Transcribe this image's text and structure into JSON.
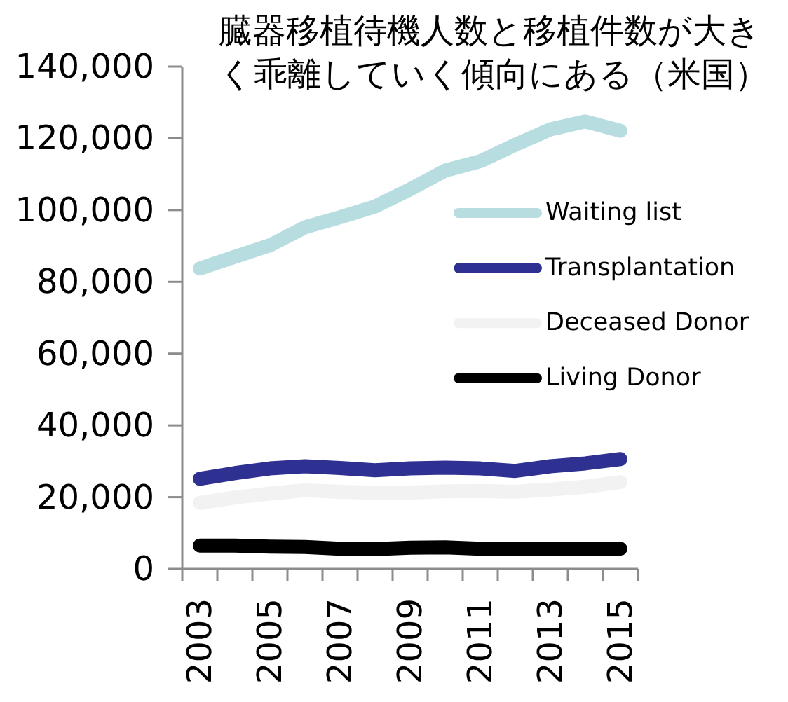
{
  "chart_data": {
    "type": "line",
    "title": "臓器移植待機人数と移植件数が大きく乖離していく傾向にある（米国）",
    "categories": [
      "2003",
      null,
      "2005",
      null,
      "2007",
      null,
      "2009",
      null,
      "2011",
      null,
      "2013",
      null,
      "2015"
    ],
    "ylim": [
      0,
      140000
    ],
    "yticks": [
      0,
      {
        "value": 20000,
        "label": "20,000"
      },
      {
        "value": 40000,
        "label": "40,000"
      },
      {
        "value": 60000,
        "label": "60,000"
      },
      {
        "value": 80000,
        "label": "80,000"
      },
      {
        "value": 100000,
        "label": "100,000"
      },
      {
        "value": 120000,
        "label": "120,000"
      },
      {
        "value": 140000,
        "label": "140,000"
      }
    ],
    "legend": "right",
    "series": [
      {
        "name": "Waiting list",
        "color": "#b7dde0",
        "values": [
          83700,
          87000,
          90200,
          95200,
          98000,
          101000,
          105800,
          111000,
          113600,
          118200,
          122500,
          124700,
          122100
        ]
      },
      {
        "name": "Transplantation",
        "color": "#2e3192",
        "values": [
          25100,
          26700,
          28000,
          28600,
          28100,
          27500,
          28000,
          28200,
          28000,
          27300,
          28600,
          29400,
          30600
        ]
      },
      {
        "name": "Deceased Donor",
        "color": "#f2f2f2",
        "values": [
          18400,
          19900,
          21000,
          21900,
          21500,
          21200,
          21300,
          21600,
          21700,
          21500,
          22100,
          22900,
          24200
        ]
      },
      {
        "name": "Living Donor",
        "color": "#000000",
        "values": [
          6500,
          6500,
          6200,
          6100,
          5600,
          5500,
          5900,
          6000,
          5600,
          5500,
          5500,
          5500,
          5600
        ]
      }
    ]
  }
}
